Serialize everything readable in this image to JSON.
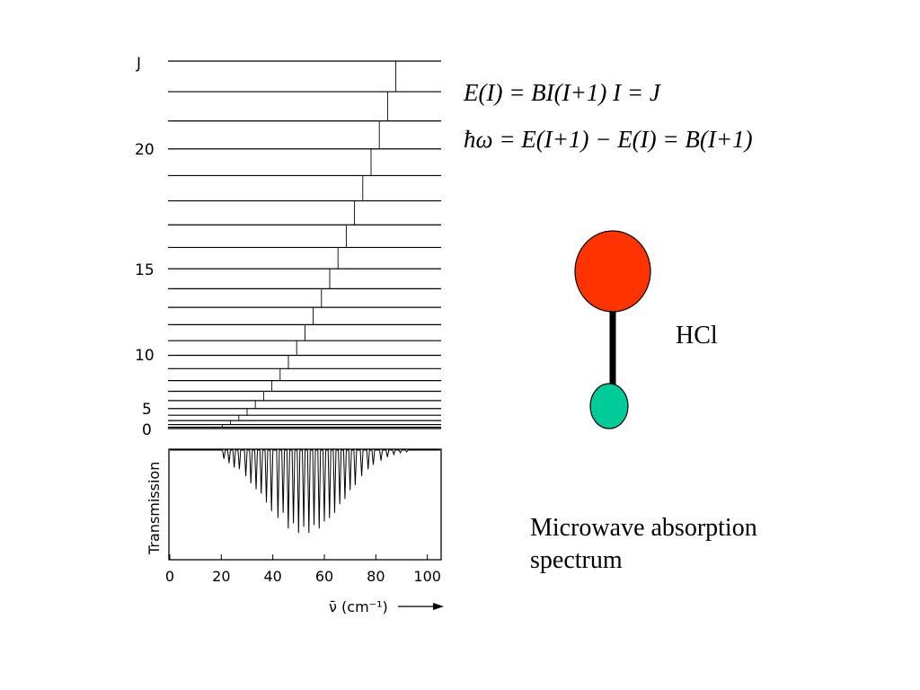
{
  "equations": {
    "energy": "E(I) = BI(I+1)    I = J",
    "transition": "ħω = E(I+1) − E(I) = B(I+1)"
  },
  "molecule": {
    "label": "HCl",
    "large_atom_color": "#ff3300",
    "small_atom_color": "#00cc99",
    "bond_color": "#000000"
  },
  "caption": {
    "line1": "Microwave absorption",
    "line2": "spectrum"
  },
  "chart_data": [
    {
      "type": "diagram",
      "description_label": "J",
      "y_ticks": [
        "J",
        "20",
        "15",
        "10",
        "5",
        "0"
      ],
      "levels": [
        0,
        1,
        2,
        3,
        4,
        5,
        6,
        7,
        8,
        9,
        10,
        11,
        12,
        13,
        14,
        15,
        16,
        17,
        18,
        19,
        20,
        21,
        22,
        23
      ]
    },
    {
      "type": "line",
      "ylabel": "Transmission",
      "xlabel": "ν̄ (cm⁻¹)",
      "xlim": [
        0,
        105
      ],
      "x_ticks": [
        0,
        20,
        40,
        60,
        80,
        100
      ],
      "series": [
        {
          "x": [
            21,
            23,
            25,
            27,
            29.5,
            31.5,
            33.5,
            35.5,
            37.5,
            39.5,
            42,
            44,
            46,
            48,
            50,
            52,
            54,
            56,
            58,
            60,
            62,
            64,
            66,
            68,
            70,
            72,
            74.5,
            77,
            79,
            82,
            84.5,
            87,
            89.5,
            92
          ],
          "y": [
            0.1,
            0.15,
            0.2,
            0.22,
            0.3,
            0.38,
            0.45,
            0.5,
            0.6,
            0.7,
            0.78,
            0.72,
            0.9,
            0.84,
            0.95,
            0.88,
            0.95,
            0.86,
            0.9,
            0.82,
            0.78,
            0.72,
            0.62,
            0.56,
            0.46,
            0.4,
            0.3,
            0.22,
            0.17,
            0.12,
            0.08,
            0.05,
            0.03,
            0.02
          ]
        }
      ]
    }
  ]
}
